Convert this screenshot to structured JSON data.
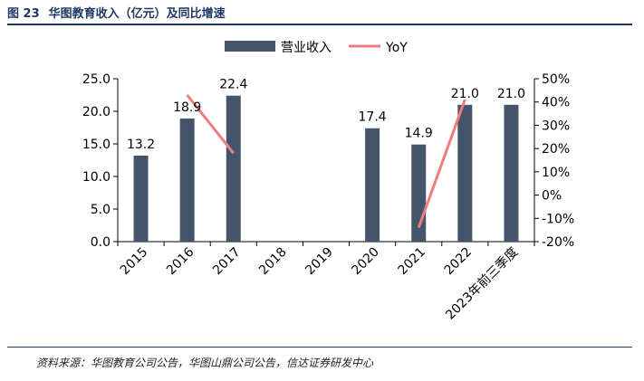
{
  "figure": {
    "number": "图 23",
    "title": "华图教育收入（亿元）及同比增速"
  },
  "source": "资料来源：华图教育公司公告，华图山鼎公司公告，信达证券研发中心",
  "colors": {
    "bar": "#44546a",
    "line": "#f07c7c",
    "title": "#1f3864"
  },
  "chart_data": {
    "type": "bar",
    "categories": [
      "2015",
      "2016",
      "2017",
      "2018",
      "2019",
      "2020",
      "2021",
      "2022",
      "2023年前三季度"
    ],
    "series": [
      {
        "name": "营业收入",
        "type": "bar",
        "axis": "left",
        "values": [
          13.2,
          18.9,
          22.4,
          null,
          null,
          17.4,
          14.9,
          21.0,
          21.0
        ],
        "labels": [
          "13.2",
          "18.9",
          "22.4",
          "",
          "",
          "17.4",
          "14.9",
          "21.0",
          "21.0"
        ]
      },
      {
        "name": "YoY",
        "type": "line",
        "axis": "right",
        "values": [
          null,
          43,
          18,
          null,
          null,
          null,
          -14,
          41,
          null
        ]
      }
    ],
    "y_left": {
      "lim": [
        0,
        25
      ],
      "ticks": [
        "0.0",
        "5.0",
        "10.0",
        "15.0",
        "20.0",
        "25.0"
      ],
      "values": [
        0,
        5,
        10,
        15,
        20,
        25
      ]
    },
    "y_right": {
      "lim": [
        -20,
        50
      ],
      "ticks": [
        "-20%",
        "-10%",
        "0%",
        "10%",
        "20%",
        "30%",
        "40%",
        "50%"
      ],
      "values": [
        -20,
        -10,
        0,
        10,
        20,
        30,
        40,
        50
      ]
    },
    "legend_position": "top-center",
    "grid": false
  }
}
